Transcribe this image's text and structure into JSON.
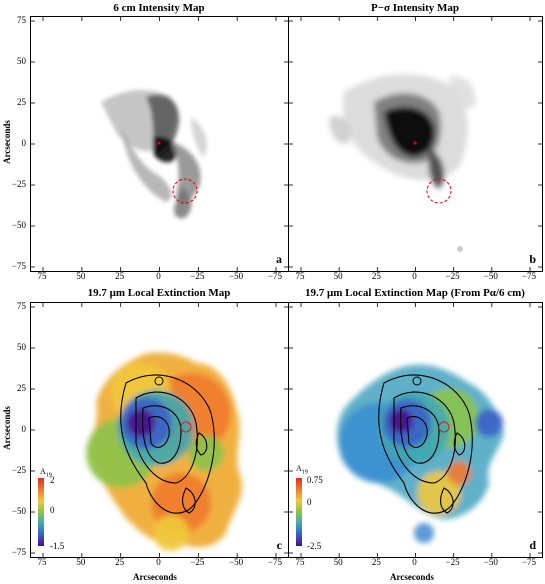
{
  "panels": [
    {
      "title": "6 cm Intensity Map",
      "label": "a",
      "kind": "intensity-6cm"
    },
    {
      "title": "P−σ Intensity Map",
      "label": "b",
      "kind": "intensity-pa"
    },
    {
      "title": "19.7 μm Local Extinction Map",
      "label": "c",
      "kind": "extinction",
      "colorbar": {
        "symbol": "A19",
        "max": "2",
        "mid": "0",
        "min": "-1.5"
      }
    },
    {
      "title": "19.7 μm Local Extinction Map (From Pα/6 cm)",
      "label": "d",
      "kind": "extinction-2",
      "colorbar": {
        "symbol": "A19",
        "max": "0.75",
        "mid": "0",
        "min": "-2.5"
      }
    }
  ],
  "axes": {
    "ylabel": "Arcseconds",
    "xlabel": "Arcseconds",
    "yticks": [
      "75",
      "50",
      "25",
      "0",
      "−25",
      "−50",
      "−75"
    ],
    "xticks": [
      "75",
      "50",
      "25",
      "0",
      "−25",
      "−50",
      "−75"
    ]
  },
  "colors": {
    "marker": "#e00000",
    "colormap": [
      "#4b0b8c",
      "#3a5fc8",
      "#3fa9b0",
      "#8bc34a",
      "#f0c93a",
      "#ef7a2d",
      "#d7301f"
    ]
  }
}
